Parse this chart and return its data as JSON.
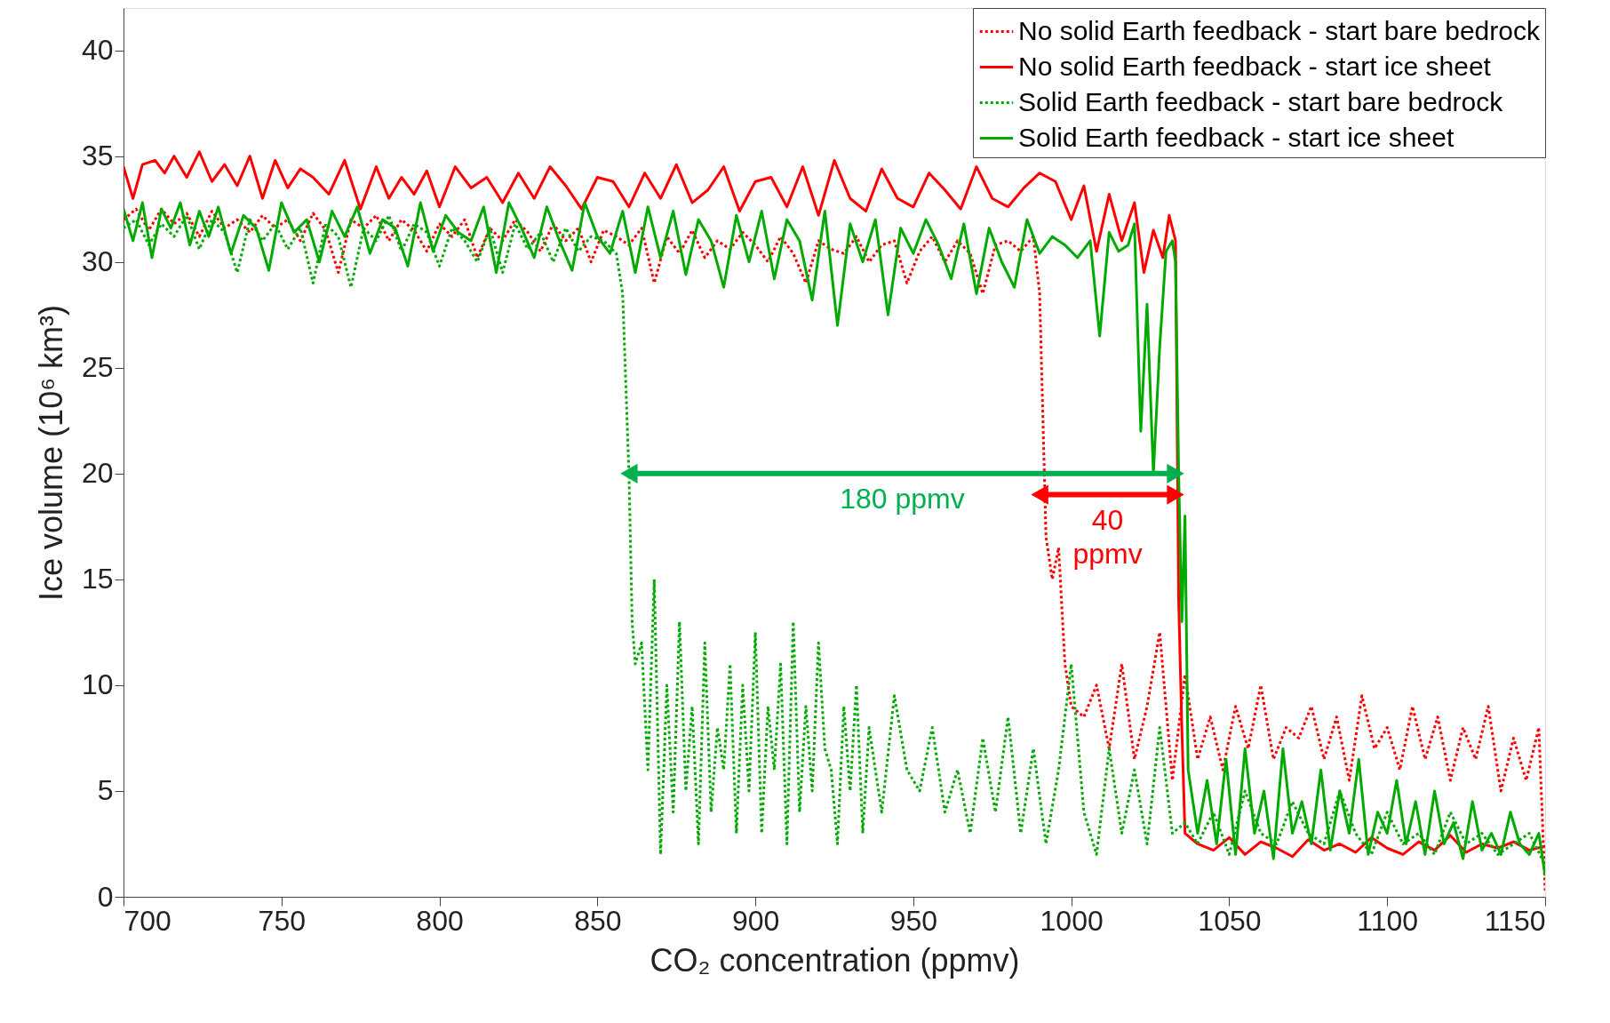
{
  "chart_data": {
    "type": "line",
    "xlabel": "CO₂ concentration (ppmv)",
    "ylabel": "Ice volume (10⁶ km³)",
    "xlim": [
      700,
      1150
    ],
    "xticks": [
      700,
      750,
      800,
      850,
      900,
      950,
      1000,
      1050,
      1100,
      1150
    ],
    "ylim": [
      0,
      42
    ],
    "yticks": [
      0,
      5,
      10,
      15,
      20,
      25,
      30,
      35,
      40
    ],
    "grid": false,
    "legend": "top right",
    "annotations": [
      "180 ppmv",
      "40\nppmv"
    ],
    "series": [
      {
        "name": "No solid Earth feedback - start bare bedrock",
        "color": "#ff0000",
        "line_style": "dotted",
        "x": [
          700,
          704,
          708,
          712,
          716,
          720,
          724,
          728,
          732,
          736,
          740,
          744,
          748,
          752,
          756,
          760,
          764,
          768,
          772,
          776,
          780,
          784,
          788,
          792,
          796,
          800,
          804,
          808,
          812,
          816,
          820,
          824,
          828,
          832,
          836,
          840,
          844,
          848,
          852,
          856,
          860,
          864,
          868,
          872,
          876,
          880,
          884,
          888,
          892,
          896,
          900,
          904,
          908,
          912,
          916,
          920,
          924,
          928,
          932,
          936,
          940,
          944,
          948,
          952,
          956,
          960,
          964,
          968,
          972,
          976,
          980,
          984,
          988,
          990,
          992,
          994,
          996,
          998,
          1000,
          1004,
          1008,
          1012,
          1016,
          1020,
          1024,
          1028,
          1032,
          1036,
          1040,
          1044,
          1048,
          1052,
          1056,
          1060,
          1064,
          1068,
          1072,
          1076,
          1080,
          1084,
          1088,
          1092,
          1096,
          1100,
          1104,
          1108,
          1112,
          1116,
          1120,
          1124,
          1128,
          1132,
          1136,
          1140,
          1144,
          1148,
          1150
        ],
        "values": [
          32,
          32.5,
          31.5,
          32.5,
          31.8,
          32.3,
          31.2,
          32.4,
          31.6,
          32,
          31.4,
          32.2,
          31.6,
          32,
          31,
          32.3,
          31.5,
          29.5,
          32,
          31.6,
          32.2,
          31,
          32,
          31.5,
          30.5,
          31.8,
          31.2,
          32,
          30.2,
          31.6,
          31,
          32,
          31.4,
          30.5,
          31.8,
          31,
          31.6,
          30,
          31.5,
          31.2,
          30.8,
          31.6,
          29,
          31.2,
          30.4,
          31.5,
          30.2,
          31,
          30.6,
          31.4,
          30.8,
          30,
          31.2,
          30.4,
          29,
          31,
          30.6,
          30.4,
          31.2,
          30,
          30.8,
          31,
          29,
          30.5,
          31.2,
          30,
          31,
          30.4,
          28.5,
          30.8,
          31,
          30.5,
          31.2,
          28.5,
          17,
          15,
          16.5,
          11,
          9,
          8.5,
          10,
          7,
          11,
          6.5,
          9,
          12.5,
          5.5,
          10.5,
          6.5,
          8.5,
          6,
          9,
          7,
          10,
          6.5,
          8,
          7.5,
          9,
          6.5,
          8.5,
          5.5,
          9.5,
          7,
          8,
          6,
          9,
          6.5,
          8.5,
          5.5,
          8,
          6.5,
          9,
          5,
          7.5,
          5.5,
          8,
          0.3
        ]
      },
      {
        "name": "No solid Earth feedback - start ice sheet",
        "color": "#ff0000",
        "line_style": "solid",
        "x": [
          700,
          703,
          706,
          710,
          713,
          716,
          720,
          724,
          728,
          732,
          736,
          740,
          744,
          748,
          752,
          756,
          760,
          765,
          770,
          775,
          780,
          784,
          788,
          792,
          796,
          800,
          805,
          810,
          815,
          820,
          825,
          830,
          835,
          840,
          845,
          850,
          855,
          860,
          865,
          870,
          875,
          880,
          885,
          890,
          895,
          900,
          905,
          910,
          915,
          920,
          925,
          930,
          935,
          940,
          945,
          950,
          955,
          960,
          965,
          970,
          975,
          980,
          985,
          990,
          995,
          1000,
          1004,
          1008,
          1012,
          1016,
          1020,
          1023,
          1026,
          1029,
          1031,
          1033,
          1034,
          1035,
          1036,
          1040,
          1045,
          1050,
          1055,
          1060,
          1065,
          1070,
          1075,
          1080,
          1085,
          1090,
          1095,
          1100,
          1105,
          1110,
          1115,
          1120,
          1125,
          1130,
          1135,
          1140,
          1145,
          1150
        ],
        "values": [
          34.5,
          33,
          34.6,
          34.8,
          34.2,
          35,
          34,
          35.2,
          33.8,
          34.6,
          33.6,
          35,
          33,
          34.8,
          33.5,
          34.4,
          34,
          33.2,
          34.8,
          32.5,
          34.5,
          33,
          34,
          33.2,
          34.3,
          32.6,
          34.5,
          33.5,
          34,
          32.8,
          34.2,
          33,
          34.5,
          33.6,
          32.5,
          34,
          33.8,
          32.6,
          34.2,
          33,
          34.6,
          32.8,
          33.4,
          34.5,
          32.4,
          33.8,
          34,
          32.6,
          34.5,
          32.2,
          34.8,
          33,
          32.4,
          34.4,
          33,
          32.6,
          34.2,
          33.4,
          32.5,
          34.5,
          33,
          32.6,
          33.5,
          34.2,
          33.8,
          32,
          33.6,
          30.5,
          33.2,
          31,
          32.8,
          29.5,
          31.5,
          30.2,
          32.2,
          31,
          14,
          8,
          3,
          2.5,
          2.2,
          2.8,
          2,
          2.6,
          2.3,
          1.9,
          2.7,
          2.2,
          2.5,
          2.1,
          2.8,
          2.3,
          2,
          2.6,
          2.2,
          2.9,
          2.1,
          2.5,
          2.3,
          2.6,
          2.2,
          2.4
        ]
      },
      {
        "name": "Solid Earth feedback - start bare bedrock",
        "color": "#00aa00",
        "line_style": "dotted",
        "x": [
          700,
          704,
          708,
          712,
          716,
          720,
          724,
          728,
          732,
          736,
          740,
          744,
          748,
          752,
          756,
          760,
          764,
          768,
          772,
          776,
          780,
          784,
          788,
          792,
          796,
          800,
          804,
          808,
          812,
          816,
          820,
          824,
          828,
          832,
          836,
          840,
          844,
          848,
          852,
          856,
          858,
          860,
          861,
          862,
          864,
          866,
          868,
          870,
          872,
          874,
          876,
          878,
          880,
          882,
          884,
          886,
          888,
          890,
          892,
          894,
          896,
          898,
          900,
          902,
          904,
          906,
          908,
          910,
          912,
          914,
          916,
          918,
          920,
          922,
          924,
          926,
          928,
          930,
          932,
          934,
          936,
          940,
          944,
          948,
          952,
          956,
          960,
          964,
          968,
          972,
          976,
          980,
          984,
          988,
          992,
          996,
          1000,
          1004,
          1008,
          1012,
          1016,
          1020,
          1024,
          1028,
          1032,
          1036,
          1040,
          1045,
          1050,
          1055,
          1060,
          1065,
          1070,
          1075,
          1080,
          1085,
          1090,
          1095,
          1100,
          1105,
          1110,
          1115,
          1120,
          1125,
          1130,
          1135,
          1140,
          1145,
          1150
        ],
        "values": [
          31.6,
          32,
          30.8,
          31.8,
          31.2,
          32.2,
          30.6,
          32,
          31.4,
          29.5,
          32,
          31,
          31.8,
          30.6,
          31.6,
          29,
          31.8,
          31.2,
          28.8,
          31.6,
          31,
          32.2,
          30.5,
          31.8,
          31.4,
          29.8,
          31.6,
          31,
          30,
          31.6,
          29.5,
          31.8,
          30.6,
          31.4,
          30,
          31.6,
          30.5,
          31.2,
          31,
          30.4,
          28.5,
          20,
          13,
          11,
          12,
          6,
          15,
          2,
          10,
          4,
          13,
          5,
          9,
          2.5,
          12,
          4,
          8,
          6,
          11,
          3,
          10,
          5,
          12.5,
          3,
          9,
          6,
          11,
          2.5,
          13,
          4,
          9,
          5,
          12,
          7,
          6,
          2.5,
          9,
          5,
          10,
          3,
          8,
          4,
          9.5,
          6,
          5,
          8,
          4,
          6,
          3,
          7.5,
          4,
          8.5,
          3,
          7,
          2.5,
          6,
          11,
          4,
          2,
          7,
          3,
          6,
          2.5,
          8,
          3,
          3.5,
          2.5,
          4,
          2,
          5,
          3,
          2.5,
          4.5,
          3,
          2.5,
          5,
          3,
          2,
          4,
          2.5,
          3,
          2,
          4,
          2.5,
          3,
          2,
          2.5,
          3,
          1.5
        ]
      },
      {
        "name": "Solid Earth feedback - start ice sheet",
        "color": "#00aa00",
        "line_style": "solid",
        "x": [
          700,
          703,
          706,
          709,
          712,
          715,
          718,
          721,
          724,
          727,
          730,
          734,
          738,
          742,
          746,
          750,
          754,
          758,
          762,
          766,
          770,
          774,
          778,
          782,
          786,
          790,
          794,
          798,
          802,
          806,
          810,
          814,
          818,
          822,
          826,
          830,
          834,
          838,
          842,
          846,
          850,
          854,
          858,
          862,
          866,
          870,
          874,
          878,
          882,
          886,
          890,
          894,
          898,
          902,
          906,
          910,
          914,
          918,
          922,
          926,
          930,
          934,
          938,
          942,
          946,
          950,
          954,
          958,
          962,
          966,
          970,
          974,
          978,
          982,
          986,
          990,
          994,
          998,
          1002,
          1006,
          1009,
          1012,
          1015,
          1018,
          1020,
          1022,
          1024,
          1026,
          1028,
          1030,
          1032,
          1033,
          1034,
          1035,
          1036,
          1037,
          1040,
          1043,
          1046,
          1049,
          1052,
          1055,
          1058,
          1061,
          1064,
          1067,
          1070,
          1073,
          1076,
          1079,
          1082,
          1085,
          1088,
          1091,
          1094,
          1097,
          1100,
          1103,
          1106,
          1109,
          1112,
          1115,
          1118,
          1121,
          1124,
          1127,
          1130,
          1133,
          1136,
          1139,
          1142,
          1145,
          1148,
          1150
        ],
        "values": [
          32.5,
          31,
          32.8,
          30.2,
          32.5,
          31.6,
          32.8,
          30.8,
          32.4,
          31.2,
          32.6,
          30.4,
          32.2,
          31.6,
          29.6,
          32.8,
          31.4,
          32,
          30,
          32.4,
          31.2,
          32.6,
          30.4,
          32,
          31.6,
          29.8,
          32.8,
          30.5,
          32.2,
          31.4,
          31,
          32.6,
          29.5,
          32.8,
          31.6,
          30.2,
          32.6,
          31,
          29.6,
          32.8,
          31.2,
          30.4,
          32.4,
          29.5,
          32.6,
          30.2,
          32.4,
          29.4,
          32,
          31,
          28.8,
          32.2,
          30,
          32.4,
          29.2,
          32,
          31,
          28.2,
          32.4,
          27,
          31.8,
          30,
          32,
          27.5,
          31.6,
          30.4,
          32,
          30.8,
          29.2,
          31.8,
          28.5,
          31.6,
          30,
          28.8,
          32,
          30.4,
          31.2,
          30.8,
          30.2,
          31,
          26.5,
          31.4,
          30.5,
          30.8,
          31.8,
          22,
          28,
          20,
          26,
          30.5,
          31,
          30,
          20,
          13,
          18,
          6,
          3,
          5.5,
          2.5,
          6.5,
          2,
          7,
          3,
          5,
          1.8,
          7,
          3,
          4.5,
          2.5,
          6,
          2.2,
          5,
          3,
          6.5,
          2,
          4,
          3,
          5.5,
          2.5,
          4.5,
          2,
          5,
          2.5,
          3.5,
          1.8,
          4.5,
          2.2,
          3,
          2,
          4,
          2.5,
          2,
          3,
          1
        ]
      },
      {
        "type": "line",
        "color": "#00b050",
        "line_style": "solid",
        "marker": "triangle",
        "x": [
          860,
          1033
        ],
        "values": [
          20,
          20
        ]
      },
      {
        "type": "line",
        "color": "#ff0000",
        "line_style": "solid",
        "marker": "triangle",
        "x": [
          990,
          1033
        ],
        "values": [
          19,
          19
        ]
      }
    ]
  }
}
